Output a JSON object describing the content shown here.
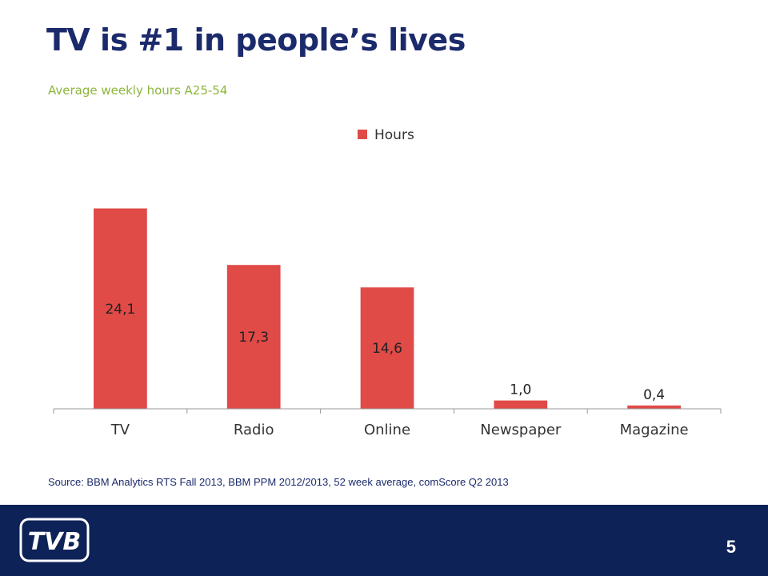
{
  "slide": {
    "title": "TV is #1 in people’s lives",
    "subtitle": "Average weekly hours A25-54",
    "source": "Source: BBM Analytics RTS Fall 2013, BBM PPM 2012/2013, 52 week average, comScore Q2 2013",
    "page_number": "5",
    "logo_text": "TVB"
  },
  "colors": {
    "title": "#1b2a6b",
    "subtitle": "#8db63c",
    "bar": "#e04a47",
    "footer": "#0d2256"
  },
  "chart_data": {
    "type": "bar",
    "categories": [
      "TV",
      "Radio",
      "Online",
      "Newspaper",
      "Magazine"
    ],
    "series": [
      {
        "name": "Hours",
        "values": [
          24.1,
          17.3,
          14.6,
          1.0,
          0.4
        ]
      }
    ],
    "data_labels": [
      "24,1",
      "17,3",
      "14,6",
      "1,0",
      "0,4"
    ],
    "legend_position": "top-right",
    "grid": false,
    "ylim": [
      0,
      28
    ]
  }
}
